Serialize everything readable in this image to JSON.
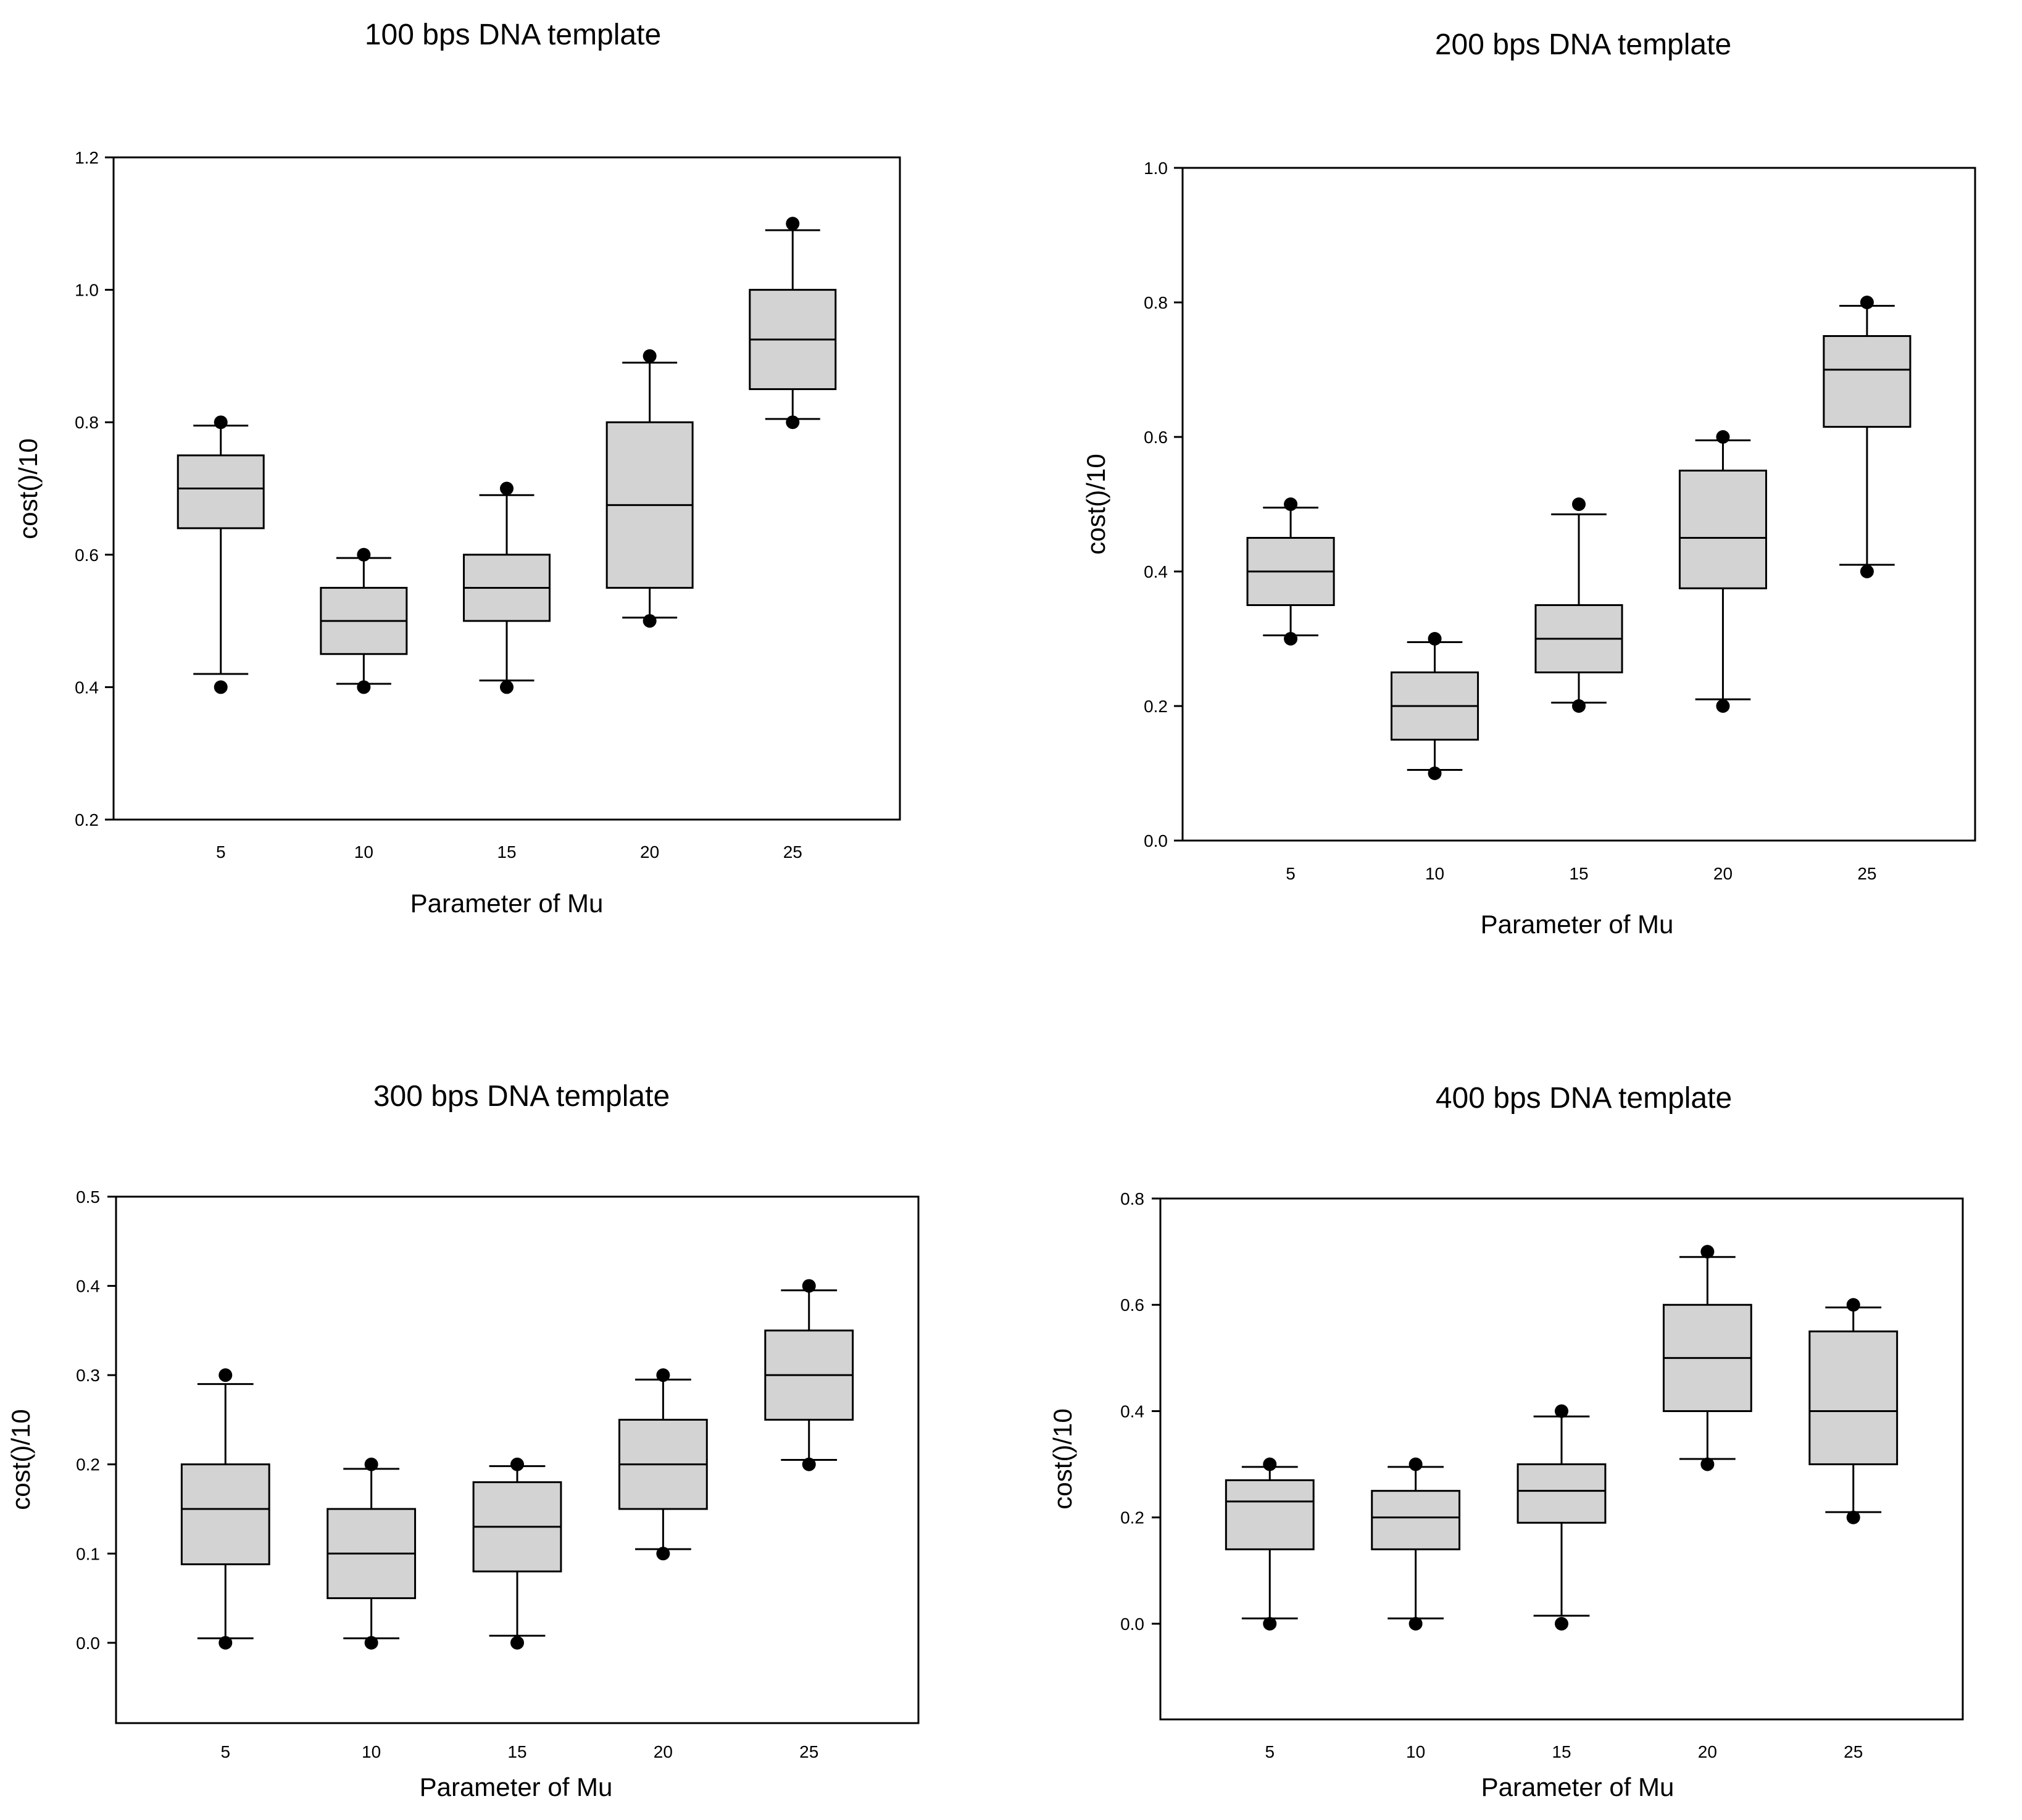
{
  "chart_data": [
    {
      "type": "box",
      "title": "100 bps DNA template",
      "xlabel": "Parameter of Mu",
      "ylabel": "cost()/10",
      "ylim": [
        0.2,
        1.2
      ],
      "yticks": [
        "0.2",
        "0.4",
        "0.6",
        "0.8",
        "1.0",
        "1.2"
      ],
      "ytick_values": [
        0.2,
        0.4,
        0.6,
        0.8,
        1.0,
        1.2
      ],
      "categories": [
        "5",
        "10",
        "15",
        "20",
        "25"
      ],
      "boxes": [
        {
          "min": 0.42,
          "q1": 0.64,
          "median": 0.7,
          "q3": 0.75,
          "max": 0.795,
          "outliers": [
            0.4,
            0.8
          ]
        },
        {
          "min": 0.405,
          "q1": 0.45,
          "median": 0.5,
          "q3": 0.55,
          "max": 0.595,
          "outliers": [
            0.4,
            0.6
          ]
        },
        {
          "min": 0.41,
          "q1": 0.5,
          "median": 0.55,
          "q3": 0.6,
          "max": 0.69,
          "outliers": [
            0.4,
            0.7
          ]
        },
        {
          "min": 0.505,
          "q1": 0.55,
          "median": 0.675,
          "q3": 0.8,
          "max": 0.89,
          "outliers": [
            0.5,
            0.9
          ]
        },
        {
          "min": 0.805,
          "q1": 0.85,
          "median": 0.925,
          "q3": 1.0,
          "max": 1.09,
          "outliers": [
            0.8,
            1.1
          ]
        }
      ],
      "box_color": "#d3d3d3"
    },
    {
      "type": "box",
      "title": "200 bps DNA template",
      "xlabel": "Parameter of Mu",
      "ylabel": "cost()/10",
      "ylim": [
        0.0,
        1.0
      ],
      "yticks": [
        "0.0",
        "0.2",
        "0.4",
        "0.6",
        "0.8",
        "1.0"
      ],
      "ytick_values": [
        0.0,
        0.2,
        0.4,
        0.6,
        0.8,
        1.0
      ],
      "categories": [
        "5",
        "10",
        "15",
        "20",
        "25"
      ],
      "boxes": [
        {
          "min": 0.305,
          "q1": 0.35,
          "median": 0.4,
          "q3": 0.45,
          "max": 0.495,
          "outliers": [
            0.3,
            0.5
          ]
        },
        {
          "min": 0.105,
          "q1": 0.15,
          "median": 0.2,
          "q3": 0.25,
          "max": 0.295,
          "outliers": [
            0.1,
            0.3
          ]
        },
        {
          "min": 0.205,
          "q1": 0.25,
          "median": 0.3,
          "q3": 0.35,
          "max": 0.485,
          "outliers": [
            0.2,
            0.5
          ]
        },
        {
          "min": 0.21,
          "q1": 0.375,
          "median": 0.45,
          "q3": 0.55,
          "max": 0.595,
          "outliers": [
            0.2,
            0.6
          ]
        },
        {
          "min": 0.41,
          "q1": 0.615,
          "median": 0.7,
          "q3": 0.75,
          "max": 0.795,
          "outliers": [
            0.4,
            0.8
          ]
        }
      ],
      "box_color": "#d3d3d3"
    },
    {
      "type": "box",
      "title": "300 bps DNA template",
      "xlabel": "Parameter of Mu",
      "ylabel": "cost()/10",
      "ylim": [
        -0.09,
        0.5
      ],
      "yticks": [
        "0.0",
        "0.1",
        "0.2",
        "0.3",
        "0.4",
        "0.5"
      ],
      "ytick_values": [
        0.0,
        0.1,
        0.2,
        0.3,
        0.4,
        0.5
      ],
      "categories": [
        "5",
        "10",
        "15",
        "20",
        "25"
      ],
      "boxes": [
        {
          "min": 0.005,
          "q1": 0.088,
          "median": 0.15,
          "q3": 0.2,
          "max": 0.29,
          "outliers": [
            0.0,
            0.3
          ]
        },
        {
          "min": 0.005,
          "q1": 0.05,
          "median": 0.1,
          "q3": 0.15,
          "max": 0.195,
          "outliers": [
            0.0,
            0.2
          ]
        },
        {
          "min": 0.008,
          "q1": 0.08,
          "median": 0.13,
          "q3": 0.18,
          "max": 0.198,
          "outliers": [
            0.0,
            0.2
          ]
        },
        {
          "min": 0.105,
          "q1": 0.15,
          "median": 0.2,
          "q3": 0.25,
          "max": 0.295,
          "outliers": [
            0.1,
            0.3
          ]
        },
        {
          "min": 0.205,
          "q1": 0.25,
          "median": 0.3,
          "q3": 0.35,
          "max": 0.395,
          "outliers": [
            0.2,
            0.4
          ]
        }
      ],
      "box_color": "#d3d3d3"
    },
    {
      "type": "box",
      "title": "400 bps DNA template",
      "xlabel": "Parameter of Mu",
      "ylabel": "cost()/10",
      "ylim": [
        -0.18,
        0.8
      ],
      "yticks": [
        "0.0",
        "0.2",
        "0.4",
        "0.6",
        "0.8"
      ],
      "ytick_values": [
        0.0,
        0.2,
        0.4,
        0.6,
        0.8
      ],
      "categories": [
        "5",
        "10",
        "15",
        "20",
        "25"
      ],
      "boxes": [
        {
          "min": 0.01,
          "q1": 0.14,
          "median": 0.23,
          "q3": 0.27,
          "max": 0.295,
          "outliers": [
            0.0,
            0.3
          ]
        },
        {
          "min": 0.01,
          "q1": 0.14,
          "median": 0.2,
          "q3": 0.25,
          "max": 0.295,
          "outliers": [
            0.0,
            0.3
          ]
        },
        {
          "min": 0.015,
          "q1": 0.19,
          "median": 0.25,
          "q3": 0.3,
          "max": 0.39,
          "outliers": [
            0.0,
            0.4
          ]
        },
        {
          "min": 0.31,
          "q1": 0.4,
          "median": 0.5,
          "q3": 0.6,
          "max": 0.69,
          "outliers": [
            0.3,
            0.7
          ]
        },
        {
          "min": 0.21,
          "q1": 0.3,
          "median": 0.4,
          "q3": 0.55,
          "max": 0.595,
          "outliers": [
            0.2,
            0.6
          ]
        }
      ],
      "box_color": "#d3d3d3"
    }
  ]
}
